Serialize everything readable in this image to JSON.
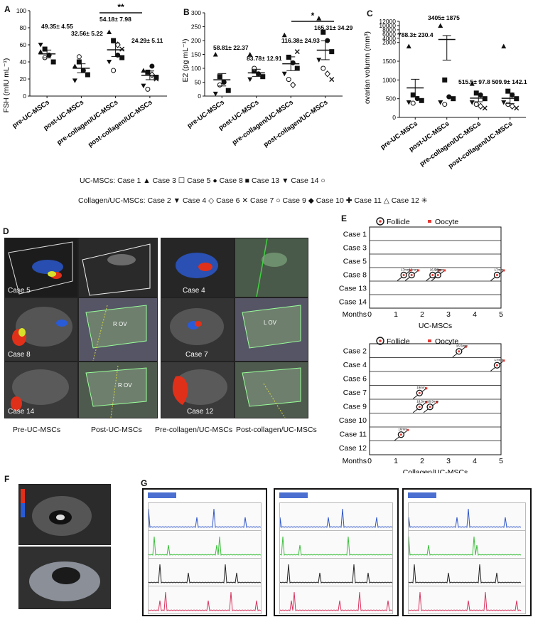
{
  "panels": {
    "A": {
      "letter": "A",
      "ylabel": "FSH (mIU mL⁻¹)",
      "yticks": [
        "0",
        "20",
        "40",
        "60",
        "80",
        "100"
      ],
      "categories": [
        "pre-UC-MSCs",
        "post-UC-MSCs",
        "pre-collagen/UC-MSCs",
        "post-collagen/UC-MSCs"
      ],
      "annotations": [
        "49.35± 4.55",
        "32.56± 5.22",
        "54.18± 7.98",
        "24.29± 5.11"
      ],
      "sig": "**"
    },
    "B": {
      "letter": "B",
      "ylabel": "E2 (pg mL⁻¹)",
      "yticks": [
        "0",
        "50",
        "100",
        "150",
        "200",
        "250",
        "300"
      ],
      "categories": [
        "pre-UC-MSCs",
        "post-UC-MSCs",
        "pre-collagen/UC-MSCs",
        "post-collagen/UC-MSCs"
      ],
      "annotations": [
        "58.81± 22.37",
        "83.78± 12.91",
        "116.38± 24.93",
        "165.31± 34.29"
      ],
      "sig": "*"
    },
    "C": {
      "letter": "C",
      "ylabel": "ovarian volumn (mm³)",
      "yticks": [
        "0",
        "500",
        "1000",
        "1500",
        "2000",
        "4000",
        "6000",
        "8000",
        "10000",
        "12000"
      ],
      "categories": [
        "pre-UC-MSCs",
        "post-UC-MSCs",
        "pre-collagen/UC-MSCs",
        "post-collagen/UC-MSCs"
      ],
      "annotations": [
        "788.3± 230.4",
        "3405± 1875",
        "515.5± 97.8",
        "509.9± 142.1"
      ]
    },
    "D": {
      "letter": "D",
      "case_labels": [
        "Case 5",
        "Case 4",
        "Case 8",
        "Case 7",
        "Case 14",
        "Case 12"
      ],
      "inner_labels": [
        "R OV",
        "L OV",
        "R OV"
      ],
      "captions": [
        "Pre-UC-MSCs",
        "Post-UC-MSCs",
        "Pre-collagen/UC-MSCs",
        "Post-collagen/UC-MSCs"
      ]
    },
    "E": {
      "letter": "E",
      "legend_follicle": "Follicle",
      "legend_oocyte": "Oocyte",
      "xlabel_prefix": "Months",
      "xticks": [
        "0",
        "1",
        "2",
        "3",
        "4",
        "5"
      ],
      "top": {
        "group": "UC-MSCs",
        "cases": [
          "Case 1",
          "Case 3",
          "Case 5",
          "Case 8",
          "Case 13",
          "Case 14"
        ],
        "events": [
          {
            "case_index": 3,
            "month": 1.3,
            "size": "17mm"
          },
          {
            "case_index": 3,
            "month": 1.6,
            "size": "19mm"
          },
          {
            "case_index": 3,
            "month": 2.4,
            "size": "16.5mm"
          },
          {
            "case_index": 3,
            "month": 2.6,
            "size": "23mm"
          },
          {
            "case_index": 3,
            "month": 4.85,
            "size": "17mm"
          }
        ]
      },
      "bottom": {
        "group": "Collagen/UC-MSCs",
        "cases": [
          "Case 2",
          "Case 4",
          "Case 6",
          "Case 7",
          "Case 9",
          "Case 10",
          "Case 11",
          "Case 12"
        ],
        "events": [
          {
            "case_index": 0,
            "month": 3.4,
            "size": "15.5mm"
          },
          {
            "case_index": 1,
            "month": 4.85,
            "size": "17mm"
          },
          {
            "case_index": 3,
            "month": 1.9,
            "size": "19mm"
          },
          {
            "case_index": 4,
            "month": 1.9,
            "size": "18.5mm"
          },
          {
            "case_index": 4,
            "month": 2.3,
            "size": "18.5mm"
          },
          {
            "case_index": 6,
            "month": 1.2,
            "size": "16mm"
          }
        ]
      }
    },
    "F": {
      "letter": "F"
    },
    "G": {
      "letter": "G"
    }
  },
  "legend": {
    "uc_title": "UC-MSCs:",
    "uc_items": [
      "Case 1 ▲",
      "Case 3 ☐",
      "Case 5 ●",
      "Case 8 ■",
      "Case 13 ▼",
      "Case 14 ○"
    ],
    "col_title": "Collagen/UC-MSCs:",
    "col_items": [
      "Case 2 ▼",
      "Case 4 ◇",
      "Case 6 ✕",
      "Case 7 ○",
      "Case 9 ◆",
      "Case 10 ✚",
      "Case 11 △",
      "Case 12 ✳"
    ]
  },
  "chart_data": [
    {
      "type": "scatter",
      "title": "",
      "xlabel": "",
      "ylabel": "FSH (mIU mL⁻¹)",
      "ylim": [
        0,
        100
      ],
      "categories": [
        "pre-UC-MSCs",
        "post-UC-MSCs",
        "pre-collagen/UC-MSCs",
        "post-collagen/UC-MSCs"
      ],
      "means": [
        49.35,
        32.56,
        54.18,
        24.29
      ],
      "sem": [
        4.55,
        5.22,
        7.98,
        5.11
      ],
      "points": [
        [
          52,
          55,
          48,
          40,
          60,
          45
        ],
        [
          35,
          40,
          30,
          25,
          18,
          46
        ],
        [
          75,
          65,
          48,
          45,
          40,
          30,
          60,
          55
        ],
        [
          30,
          28,
          35,
          22,
          12,
          8,
          25,
          20
        ]
      ]
    },
    {
      "type": "scatter",
      "title": "",
      "xlabel": "",
      "ylabel": "E2 (pg mL⁻¹)",
      "ylim": [
        0,
        300
      ],
      "categories": [
        "pre-UC-MSCs",
        "post-UC-MSCs",
        "pre-collagen/UC-MSCs",
        "post-collagen/UC-MSCs"
      ],
      "means": [
        58.81,
        83.78,
        116.38,
        165.31
      ],
      "sem": [
        22.37,
        12.91,
        24.93,
        34.29
      ],
      "points": [
        [
          150,
          70,
          50,
          20,
          8,
          40
        ],
        [
          150,
          90,
          80,
          70,
          60,
          100
        ],
        [
          220,
          140,
          120,
          100,
          80,
          60,
          40,
          160
        ],
        [
          280,
          230,
          200,
          160,
          130,
          100,
          80,
          60
        ]
      ]
    },
    {
      "type": "scatter",
      "title": "",
      "xlabel": "",
      "ylabel": "ovarian volumn (mm³)",
      "ylim": [
        0,
        12000
      ],
      "categories": [
        "pre-UC-MSCs",
        "post-UC-MSCs",
        "pre-collagen/UC-MSCs",
        "post-collagen/UC-MSCs"
      ],
      "means": [
        788.3,
        3405,
        515.5,
        509.9
      ],
      "sem": [
        230.4,
        1875,
        97.8,
        142.1
      ],
      "points": [
        [
          1900,
          600,
          500,
          450,
          400,
          380
        ],
        [
          10000,
          1000,
          550,
          500,
          400,
          350
        ],
        [
          900,
          650,
          600,
          500,
          400,
          350,
          300,
          250
        ],
        [
          1900,
          700,
          600,
          500,
          400,
          350,
          300,
          250
        ]
      ]
    }
  ],
  "colors": {
    "us_dark": "#1a1a1a",
    "doppler_red": "#e0301a",
    "doppler_blue": "#2a5bd6",
    "oocyte": "#e53935",
    "trace_blue": "#2f55c9",
    "trace_green": "#3fbf3f",
    "trace_black": "#222222",
    "trace_red": "#d8335e"
  }
}
